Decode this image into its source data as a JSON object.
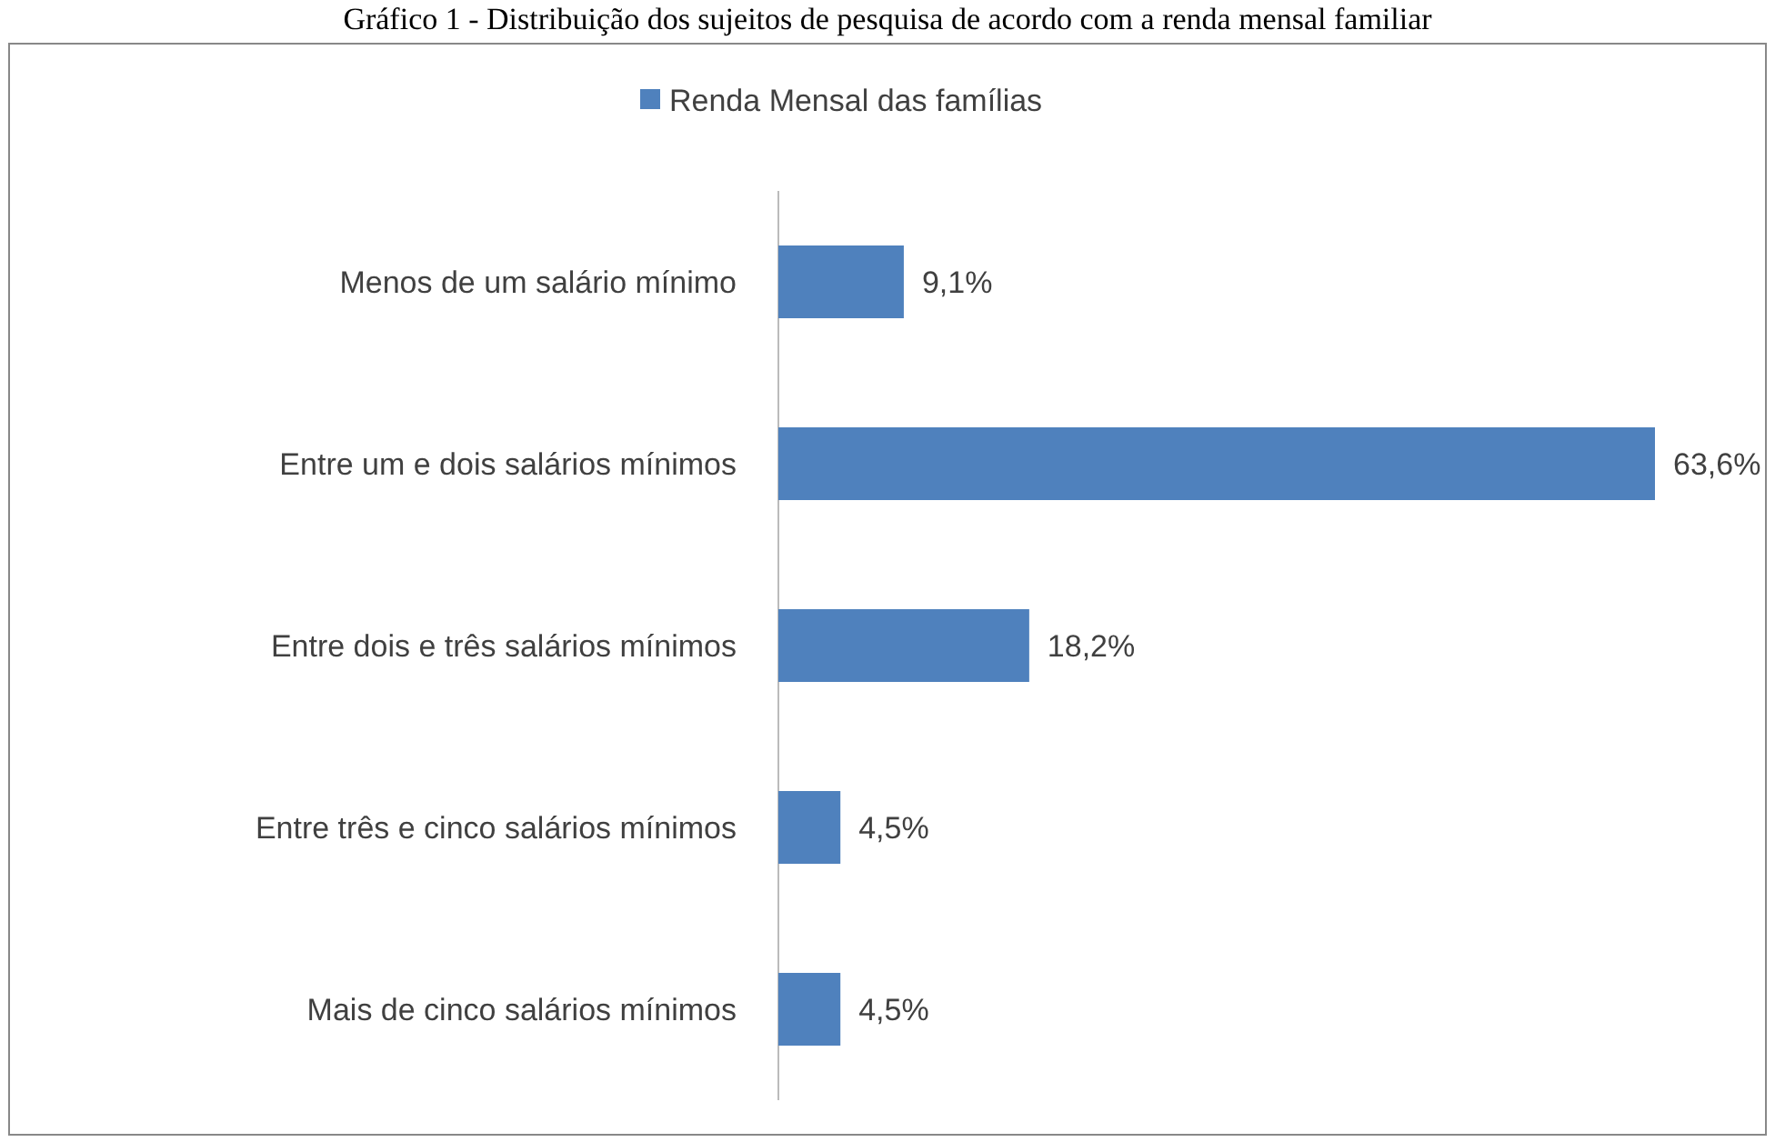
{
  "chart_data": {
    "type": "bar",
    "orientation": "horizontal",
    "title": "Gráfico 1 - Distribuição dos sujeitos de pesquisa de acordo com a renda mensal familiar",
    "categories": [
      "Menos de um salário mínimo",
      "Entre um e dois salários mínimos",
      "Entre dois e três salários mínimos",
      "Entre três e cinco salários mínimos",
      "Mais de cinco salários mínimos"
    ],
    "series": [
      {
        "name": "Renda Mensal das famílias",
        "color": "#4f81bd",
        "values": [
          9.1,
          63.6,
          18.2,
          4.5,
          4.5
        ],
        "value_labels": [
          "9,1%",
          "63,6%",
          "18,2%",
          "4,5%",
          "4,5%"
        ]
      }
    ],
    "legend": "top"
  }
}
